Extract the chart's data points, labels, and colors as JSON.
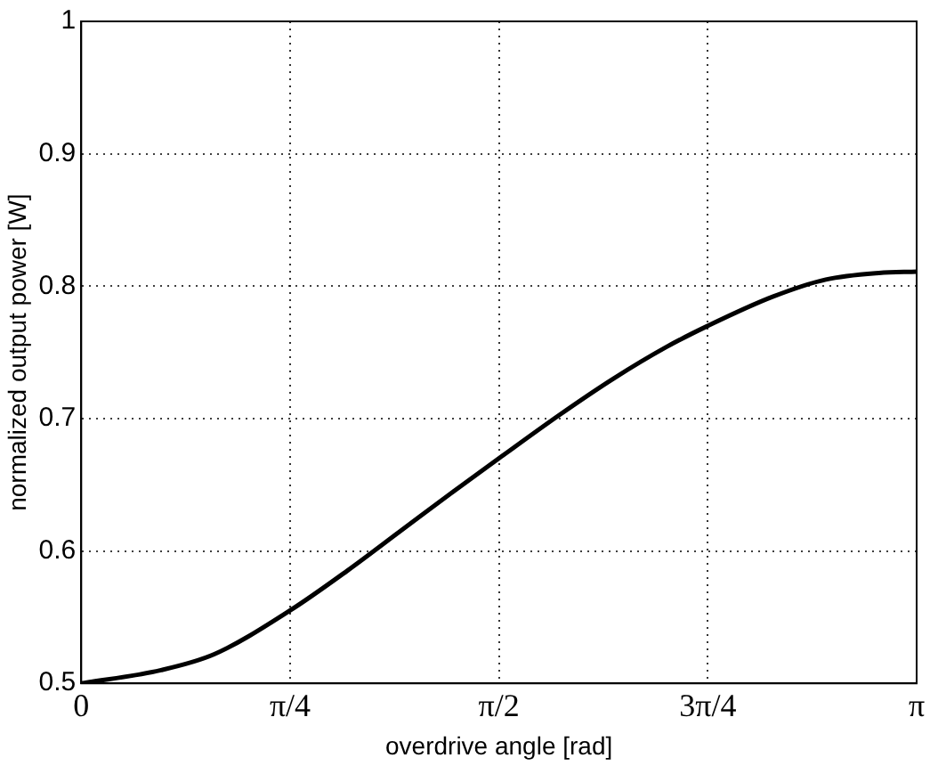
{
  "chart_data": {
    "type": "line",
    "xlabel": "overdrive angle [rad]",
    "ylabel": "normalized output power [W]",
    "x": [
      0,
      0.3,
      0.5,
      0.785,
      1.0,
      1.2,
      1.4,
      1.571,
      1.8,
      2.0,
      2.2,
      2.356,
      2.6,
      2.8,
      3.0,
      3.1416
    ],
    "series": [
      {
        "color": "#000000",
        "values": [
          0.5,
          0.51,
          0.522,
          0.555,
          0.585,
          0.615,
          0.645,
          0.67,
          0.703,
          0.73,
          0.754,
          0.77,
          0.792,
          0.805,
          0.81,
          0.811
        ]
      }
    ],
    "xlim": [
      0,
      3.1416
    ],
    "xticks": [
      {
        "value": 0,
        "label": "0"
      },
      {
        "value": 0.7854,
        "label": "π/4"
      },
      {
        "value": 1.5708,
        "label": "π/2"
      },
      {
        "value": 2.3562,
        "label": "3π/4"
      },
      {
        "value": 3.1416,
        "label": "π"
      }
    ],
    "ylim": [
      0.5,
      1
    ],
    "yticks": [
      0.5,
      0.6,
      0.7,
      0.8,
      0.9,
      1
    ],
    "grid": true,
    "legend": false,
    "marker": "none",
    "line_style": "solid"
  }
}
